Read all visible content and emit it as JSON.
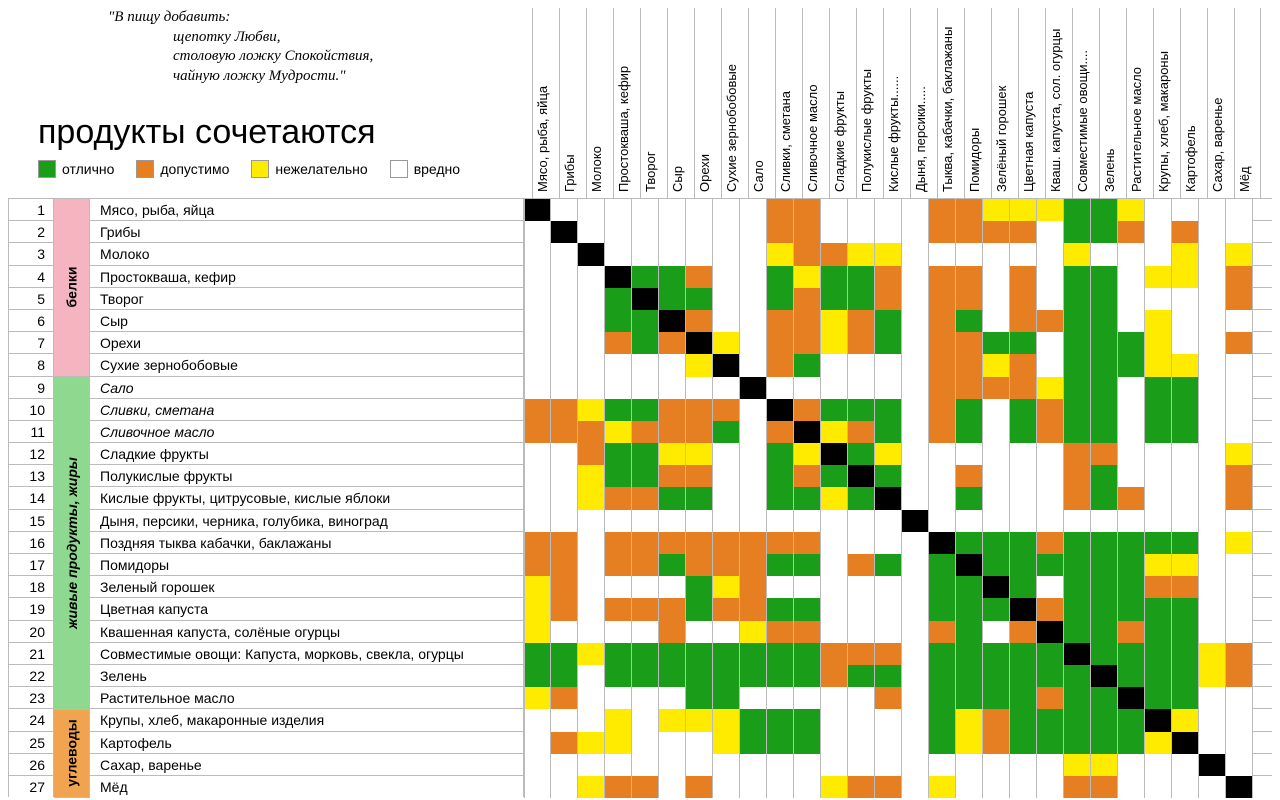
{
  "quote": {
    "l1": "\"В пищу добавить:",
    "l2": "щепотку Любви,",
    "l3": "столовую ложку Спокойствия,",
    "l4": "чайную ложку Мудрости.\""
  },
  "title": "продукты сочетаются",
  "legend": [
    {
      "color": "#1a9e1a",
      "label": "отлично"
    },
    {
      "color": "#e67e22",
      "label": "допустимо"
    },
    {
      "color": "#ffeb00",
      "label": "нежелательно"
    },
    {
      "color": "#ffffff",
      "label": "вредно"
    }
  ],
  "colors": {
    "excellent": "#1a9e1a",
    "ok": "#e67e22",
    "bad": "#ffeb00",
    "harmful": "#ffffff",
    "diag": "#000000",
    "grid": "#bbbbbb",
    "group_pink": "#f4b4c0",
    "group_green": "#8fd88f",
    "group_orange": "#f0a450"
  },
  "columns": [
    "Мясо, рыба, яйца",
    "Грибы",
    "Молоко",
    "Простокваша, кефир",
    "Творог",
    "Сыр",
    "Орехи",
    "Сухие зернобобовые",
    "Сало",
    "Сливки, сметана",
    "Сливочное масло",
    "Сладкие фрукты",
    "Полукислые фрукты",
    "Кислые фрукты......",
    "Дыня, персики.....",
    "Тыква, кабачки, баклажаны",
    "Помидоры",
    "Зелёный горошек",
    "Цветная капуста",
    "Кваш. капуста, сол. огурцы",
    "Совместимые овощи....",
    "Зелень",
    "Растительное масло",
    "Крупы, хлеб, макароны",
    "Картофель",
    "Сахар, варенье",
    "Мёд"
  ],
  "groups": [
    {
      "label": "белки",
      "start": 0,
      "end": 8,
      "color": "#f4b4c0"
    },
    {
      "label": "живые продукты, жиры",
      "start": 8,
      "end": 23,
      "color": "#8fd88f",
      "italic": true
    },
    {
      "label": "углеводы",
      "start": 23,
      "end": 27,
      "color": "#f0a450"
    }
  ],
  "rows": [
    {
      "n": 1,
      "label": "Мясо, рыба, яйца",
      "italic": false
    },
    {
      "n": 2,
      "label": "Грибы",
      "italic": false
    },
    {
      "n": 3,
      "label": "Молоко",
      "italic": false
    },
    {
      "n": 4,
      "label": "Простокваша, кефир",
      "italic": false
    },
    {
      "n": 5,
      "label": "Творог",
      "italic": false
    },
    {
      "n": 6,
      "label": "Сыр",
      "italic": false
    },
    {
      "n": 7,
      "label": "Орехи",
      "italic": false
    },
    {
      "n": 8,
      "label": "Сухие зернобобовые",
      "italic": false
    },
    {
      "n": 9,
      "label": "Сало",
      "italic": true
    },
    {
      "n": 10,
      "label": "Сливки, сметана",
      "italic": true
    },
    {
      "n": 11,
      "label": "Сливочное масло",
      "italic": true
    },
    {
      "n": 12,
      "label": "Сладкие фрукты",
      "italic": false
    },
    {
      "n": 13,
      "label": "Полукислые фрукты",
      "italic": false
    },
    {
      "n": 14,
      "label": "Кислые фрукты, цитрусовые, кислые яблоки",
      "italic": false
    },
    {
      "n": 15,
      "label": "Дыня, персики, черника, голубика, виноград",
      "italic": false
    },
    {
      "n": 16,
      "label": "Поздняя тыква кабачки, баклажаны",
      "italic": false
    },
    {
      "n": 17,
      "label": "Помидоры",
      "italic": false
    },
    {
      "n": 18,
      "label": "Зеленый горошек",
      "italic": false
    },
    {
      "n": 19,
      "label": "Цветная капуста",
      "italic": false
    },
    {
      "n": 20,
      "label": "Квашенная капуста, солёные огурцы",
      "italic": false
    },
    {
      "n": 21,
      "label": "Совместимые овощи: Капуста, морковь, свекла, огурцы",
      "italic": false
    },
    {
      "n": 22,
      "label": "Зелень",
      "italic": false
    },
    {
      "n": 23,
      "label": "Растительное масло",
      "italic": false
    },
    {
      "n": 24,
      "label": "Крупы, хлеб, макаронные изделия",
      "italic": false
    },
    {
      "n": 25,
      "label": "Картофель",
      "italic": false
    },
    {
      "n": 26,
      "label": "Сахар, варенье",
      "italic": false
    },
    {
      "n": 27,
      "label": "Мёд",
      "italic": false
    }
  ],
  "matrix_comment": "0=white/harmful, 1=green/excellent, 2=orange/ok, 3=yellow/bad, 4=black diagonal",
  "matrix": [
    [
      4,
      0,
      0,
      0,
      0,
      0,
      0,
      0,
      0,
      2,
      2,
      0,
      0,
      0,
      0,
      2,
      2,
      3,
      3,
      3,
      1,
      1,
      3,
      0,
      0,
      0,
      0
    ],
    [
      0,
      4,
      0,
      0,
      0,
      0,
      0,
      0,
      0,
      2,
      2,
      0,
      0,
      0,
      0,
      2,
      2,
      2,
      2,
      0,
      1,
      1,
      2,
      0,
      2,
      0,
      0
    ],
    [
      0,
      0,
      4,
      0,
      0,
      0,
      0,
      0,
      0,
      3,
      2,
      2,
      3,
      3,
      0,
      0,
      0,
      0,
      0,
      0,
      3,
      0,
      0,
      0,
      3,
      0,
      3
    ],
    [
      0,
      0,
      0,
      4,
      1,
      1,
      2,
      0,
      0,
      1,
      3,
      1,
      1,
      2,
      0,
      2,
      2,
      0,
      2,
      0,
      1,
      1,
      0,
      3,
      3,
      0,
      2
    ],
    [
      0,
      0,
      0,
      1,
      4,
      1,
      1,
      0,
      0,
      1,
      2,
      1,
      1,
      2,
      0,
      2,
      2,
      0,
      2,
      0,
      1,
      1,
      0,
      0,
      0,
      0,
      2
    ],
    [
      0,
      0,
      0,
      1,
      1,
      4,
      2,
      0,
      0,
      2,
      2,
      3,
      2,
      1,
      0,
      2,
      1,
      0,
      2,
      2,
      1,
      1,
      0,
      3,
      0,
      0,
      0
    ],
    [
      0,
      0,
      0,
      2,
      1,
      2,
      4,
      3,
      0,
      2,
      2,
      3,
      2,
      1,
      0,
      2,
      2,
      1,
      1,
      0,
      1,
      1,
      1,
      3,
      0,
      0,
      2
    ],
    [
      0,
      0,
      0,
      0,
      0,
      0,
      3,
      4,
      0,
      2,
      1,
      0,
      0,
      0,
      0,
      2,
      2,
      3,
      2,
      0,
      1,
      1,
      1,
      3,
      3,
      0,
      0
    ],
    [
      0,
      0,
      0,
      0,
      0,
      0,
      0,
      0,
      4,
      0,
      0,
      0,
      0,
      0,
      0,
      2,
      2,
      2,
      2,
      3,
      1,
      1,
      0,
      1,
      1,
      0,
      0
    ],
    [
      2,
      2,
      3,
      1,
      1,
      2,
      2,
      2,
      0,
      4,
      2,
      1,
      1,
      1,
      0,
      2,
      1,
      0,
      1,
      2,
      1,
      1,
      0,
      1,
      1,
      0,
      0
    ],
    [
      2,
      2,
      2,
      3,
      2,
      2,
      2,
      1,
      0,
      2,
      4,
      3,
      2,
      1,
      0,
      2,
      1,
      0,
      1,
      2,
      1,
      1,
      0,
      1,
      1,
      0,
      0
    ],
    [
      0,
      0,
      2,
      1,
      1,
      3,
      3,
      0,
      0,
      1,
      3,
      4,
      1,
      3,
      0,
      0,
      0,
      0,
      0,
      0,
      2,
      2,
      0,
      0,
      0,
      0,
      3
    ],
    [
      0,
      0,
      3,
      1,
      1,
      2,
      2,
      0,
      0,
      1,
      2,
      1,
      4,
      1,
      0,
      0,
      2,
      0,
      0,
      0,
      2,
      1,
      0,
      0,
      0,
      0,
      2
    ],
    [
      0,
      0,
      3,
      2,
      2,
      1,
      1,
      0,
      0,
      1,
      1,
      3,
      1,
      4,
      0,
      0,
      1,
      0,
      0,
      0,
      2,
      1,
      2,
      0,
      0,
      0,
      2
    ],
    [
      0,
      0,
      0,
      0,
      0,
      0,
      0,
      0,
      0,
      0,
      0,
      0,
      0,
      0,
      4,
      0,
      0,
      0,
      0,
      0,
      0,
      0,
      0,
      0,
      0,
      0,
      0
    ],
    [
      2,
      2,
      0,
      2,
      2,
      2,
      2,
      2,
      2,
      2,
      2,
      0,
      0,
      0,
      0,
      4,
      1,
      1,
      1,
      2,
      1,
      1,
      1,
      1,
      1,
      0,
      3
    ],
    [
      2,
      2,
      0,
      2,
      2,
      1,
      2,
      2,
      2,
      1,
      1,
      0,
      2,
      1,
      0,
      1,
      4,
      1,
      1,
      1,
      1,
      1,
      1,
      3,
      3,
      0,
      0
    ],
    [
      3,
      2,
      0,
      0,
      0,
      0,
      1,
      3,
      2,
      0,
      0,
      0,
      0,
      0,
      0,
      1,
      1,
      4,
      1,
      0,
      1,
      1,
      1,
      2,
      2,
      0,
      0
    ],
    [
      3,
      2,
      0,
      2,
      2,
      2,
      1,
      2,
      2,
      1,
      1,
      0,
      0,
      0,
      0,
      1,
      1,
      1,
      4,
      2,
      1,
      1,
      1,
      1,
      1,
      0,
      0
    ],
    [
      3,
      0,
      0,
      0,
      0,
      2,
      0,
      0,
      3,
      2,
      2,
      0,
      0,
      0,
      0,
      2,
      1,
      0,
      2,
      4,
      1,
      1,
      2,
      1,
      1,
      0,
      0
    ],
    [
      1,
      1,
      3,
      1,
      1,
      1,
      1,
      1,
      1,
      1,
      1,
      2,
      2,
      2,
      0,
      1,
      1,
      1,
      1,
      1,
      4,
      1,
      1,
      1,
      1,
      3,
      2
    ],
    [
      1,
      1,
      0,
      1,
      1,
      1,
      1,
      1,
      1,
      1,
      1,
      2,
      1,
      1,
      0,
      1,
      1,
      1,
      1,
      1,
      1,
      4,
      1,
      1,
      1,
      3,
      2
    ],
    [
      3,
      2,
      0,
      0,
      0,
      0,
      1,
      1,
      0,
      0,
      0,
      0,
      0,
      2,
      0,
      1,
      1,
      1,
      1,
      2,
      1,
      1,
      4,
      1,
      1,
      0,
      0
    ],
    [
      0,
      0,
      0,
      3,
      0,
      3,
      3,
      3,
      1,
      1,
      1,
      0,
      0,
      0,
      0,
      1,
      3,
      2,
      1,
      1,
      1,
      1,
      1,
      4,
      3,
      0,
      0
    ],
    [
      0,
      2,
      3,
      3,
      0,
      0,
      0,
      3,
      1,
      1,
      1,
      0,
      0,
      0,
      0,
      1,
      3,
      2,
      1,
      1,
      1,
      1,
      1,
      3,
      4,
      0,
      0
    ],
    [
      0,
      0,
      0,
      0,
      0,
      0,
      0,
      0,
      0,
      0,
      0,
      0,
      0,
      0,
      0,
      0,
      0,
      0,
      0,
      0,
      3,
      3,
      0,
      0,
      0,
      4,
      0
    ],
    [
      0,
      0,
      3,
      2,
      2,
      0,
      2,
      0,
      0,
      0,
      0,
      3,
      2,
      2,
      0,
      3,
      0,
      0,
      0,
      0,
      2,
      2,
      0,
      0,
      0,
      0,
      4
    ]
  ]
}
